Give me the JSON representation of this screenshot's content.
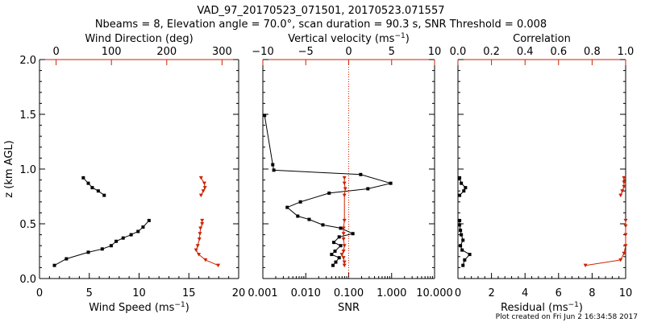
{
  "figure": {
    "title_line1": "VAD_97_20170523_071501, 20170523.071557",
    "title_line2": "Nbeams = 8, Elevation angle = 70.0°, scan duration = 90.3 s, SNR Threshold = 0.008",
    "footer": "Plot created on Fri Jun  2 16:34:58 2017",
    "colors": {
      "black": "#000000",
      "red": "#cc2200"
    }
  },
  "chart_data": [
    {
      "type": "line",
      "ylabel": "z (km AGL)",
      "ylim": [
        0,
        2.0
      ],
      "y_ticks": [
        "0.0",
        "0.5",
        "1.0",
        "1.5",
        "2.0"
      ],
      "bottom_axis": {
        "label_main": "Wind Speed (ms",
        "label_sup": "−1",
        "label_end": ")",
        "range": [
          0,
          20
        ],
        "ticks": [
          "0",
          "5",
          "10",
          "15",
          "20"
        ]
      },
      "top_axis": {
        "label": "Wind Direction (deg)",
        "range": [
          -30,
          330
        ],
        "ticks": [
          "0",
          "100",
          "200",
          "300"
        ],
        "tick_values": [
          0,
          100,
          200,
          300
        ]
      },
      "series": [
        {
          "axis": "bottom",
          "color": "#000000",
          "marker": "square",
          "points": [
            [
              1.5,
              0.12
            ],
            [
              2.7,
              0.18
            ],
            [
              4.9,
              0.24
            ],
            [
              6.3,
              0.27
            ],
            [
              7.2,
              0.3
            ],
            [
              7.7,
              0.34
            ],
            [
              8.4,
              0.37
            ],
            [
              9.2,
              0.4
            ],
            [
              9.9,
              0.43
            ],
            [
              10.4,
              0.47
            ],
            [
              11.0,
              0.53
            ]
          ]
        },
        {
          "axis": "bottom",
          "color": "#000000",
          "marker": "square",
          "points": [
            [
              6.5,
              0.76
            ],
            [
              5.9,
              0.8
            ],
            [
              5.3,
              0.83
            ],
            [
              4.9,
              0.87
            ],
            [
              4.4,
              0.92
            ]
          ]
        },
        {
          "axis": "top",
          "color": "#cc2200",
          "marker": "triangle",
          "points": [
            [
              293,
              0.12
            ],
            [
              270,
              0.17
            ],
            [
              258,
              0.22
            ],
            [
              253,
              0.26
            ],
            [
              256,
              0.3
            ],
            [
              259,
              0.36
            ],
            [
              260,
              0.41
            ],
            [
              261,
              0.46
            ],
            [
              264,
              0.5
            ],
            [
              264,
              0.53
            ]
          ]
        },
        {
          "axis": "top",
          "color": "#cc2200",
          "marker": "triangle",
          "points": [
            [
              262,
              0.76
            ],
            [
              266,
              0.8
            ],
            [
              269,
              0.83
            ],
            [
              268,
              0.87
            ],
            [
              262,
              0.92
            ]
          ]
        }
      ]
    },
    {
      "type": "line",
      "ylim": [
        0,
        2.0
      ],
      "bottom_axis": {
        "label": "SNR",
        "scale": "log",
        "range": [
          0.001,
          10
        ],
        "ticks": [
          "0.001",
          "0.010",
          "0.100",
          "1.000",
          "10.000"
        ]
      },
      "top_axis": {
        "label_main": "Vertical velocity (ms",
        "label_sup": "−1",
        "label_end": ")",
        "range": [
          -10,
          10
        ],
        "ticks": [
          "−10",
          "−5",
          "0",
          "5",
          "10"
        ],
        "tick_values": [
          -10,
          -5,
          0,
          5,
          10
        ],
        "zero_line": "dotted"
      },
      "series": [
        {
          "axis": "bottom",
          "color": "#000000",
          "marker": "square",
          "points": [
            [
              0.0011,
              1.49
            ],
            [
              0.0017,
              1.04
            ],
            [
              0.0018,
              0.99
            ],
            [
              0.19,
              0.95
            ],
            [
              0.95,
              0.87
            ],
            [
              0.28,
              0.82
            ],
            [
              0.035,
              0.78
            ],
            [
              0.0075,
              0.7
            ],
            [
              0.0037,
              0.65
            ],
            [
              0.0065,
              0.57
            ],
            [
              0.012,
              0.54
            ],
            [
              0.025,
              0.49
            ],
            [
              0.065,
              0.46
            ],
            [
              0.125,
              0.41
            ],
            [
              0.06,
              0.38
            ],
            [
              0.045,
              0.33
            ],
            [
              0.065,
              0.3
            ],
            [
              0.048,
              0.25
            ],
            [
              0.04,
              0.22
            ],
            [
              0.06,
              0.19
            ],
            [
              0.05,
              0.15
            ],
            [
              0.043,
              0.12
            ]
          ]
        },
        {
          "axis": "top",
          "color": "#cc2200",
          "marker": "triangle",
          "points": [
            [
              -0.5,
              0.12
            ],
            [
              -0.5,
              0.15
            ],
            [
              -0.6,
              0.19
            ],
            [
              -0.8,
              0.22
            ],
            [
              -0.6,
              0.25
            ],
            [
              -0.5,
              0.3
            ],
            [
              -0.6,
              0.36
            ],
            [
              -0.6,
              0.41
            ],
            [
              -0.6,
              0.46
            ],
            [
              -0.5,
              0.53
            ],
            [
              -0.5,
              0.76
            ],
            [
              -0.4,
              0.82
            ],
            [
              -0.5,
              0.87
            ],
            [
              -0.5,
              0.92
            ]
          ]
        }
      ]
    },
    {
      "type": "line",
      "ylim": [
        0,
        2.0
      ],
      "bottom_axis": {
        "label_main": "Residual (ms",
        "label_sup": "−1",
        "label_end": ")",
        "range": [
          0,
          10
        ],
        "ticks": [
          "0",
          "2",
          "4",
          "6",
          "8",
          "10"
        ]
      },
      "top_axis": {
        "label": "Correlation",
        "range": [
          0,
          1.0
        ],
        "ticks": [
          "0.0",
          "0.2",
          "0.4",
          "0.6",
          "0.8",
          "1.0"
        ],
        "tick_values": [
          0,
          0.2,
          0.4,
          0.6,
          0.8,
          1.0
        ]
      },
      "series": [
        {
          "axis": "bottom",
          "color": "#000000",
          "marker": "square",
          "points": [
            [
              0.3,
              0.12
            ],
            [
              0.4,
              0.17
            ],
            [
              0.7,
              0.22
            ],
            [
              0.25,
              0.26
            ],
            [
              0.15,
              0.3
            ],
            [
              0.3,
              0.35
            ],
            [
              0.2,
              0.4
            ],
            [
              0.15,
              0.44
            ],
            [
              0.1,
              0.49
            ],
            [
              0.1,
              0.53
            ]
          ]
        },
        {
          "axis": "bottom",
          "color": "#000000",
          "marker": "square",
          "points": [
            [
              0.1,
              0.76
            ],
            [
              0.35,
              0.8
            ],
            [
              0.45,
              0.83
            ],
            [
              0.2,
              0.87
            ],
            [
              0.1,
              0.92
            ]
          ]
        },
        {
          "axis": "top",
          "color": "#cc2200",
          "marker": "triangle",
          "points": [
            [
              0.76,
              0.12
            ],
            [
              0.97,
              0.17
            ],
            [
              0.99,
              0.23
            ],
            [
              1.0,
              0.3
            ],
            [
              1.0,
              0.4
            ],
            [
              1.0,
              0.48
            ],
            [
              1.0,
              0.53
            ]
          ]
        },
        {
          "axis": "top",
          "color": "#cc2200",
          "marker": "triangle",
          "points": [
            [
              0.97,
              0.76
            ],
            [
              0.98,
              0.8
            ],
            [
              0.99,
              0.84
            ],
            [
              0.99,
              0.88
            ],
            [
              0.99,
              0.92
            ]
          ]
        }
      ]
    }
  ]
}
